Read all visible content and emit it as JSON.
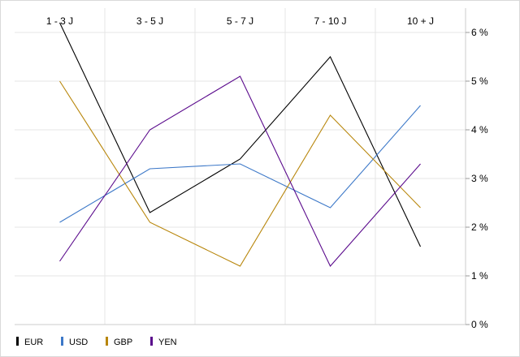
{
  "chart_data": {
    "type": "line",
    "categories": [
      "1 - 3 J",
      "3 - 5 J",
      "5 - 7 J",
      "7 - 10 J",
      "10 + J"
    ],
    "series": [
      {
        "name": "EUR",
        "color": "#000000",
        "values": [
          6.2,
          2.3,
          3.4,
          5.5,
          1.6
        ]
      },
      {
        "name": "USD",
        "color": "#3c78c8",
        "values": [
          2.1,
          3.2,
          3.3,
          2.4,
          4.5
        ]
      },
      {
        "name": "GBP",
        "color": "#b8860b",
        "values": [
          5.0,
          2.1,
          1.2,
          4.3,
          2.4
        ]
      },
      {
        "name": "YEN",
        "color": "#5a0a8c",
        "values": [
          1.3,
          4.0,
          5.1,
          1.2,
          3.3
        ]
      }
    ],
    "y_ticks": [
      "0 %",
      "1 %",
      "2 %",
      "3 %",
      "4 %",
      "5 %",
      "6 %"
    ],
    "ylim": [
      0,
      6.5
    ],
    "y_axis_side": "right",
    "category_labels_position": "top",
    "legend_position": "bottom-left",
    "grid": true
  }
}
